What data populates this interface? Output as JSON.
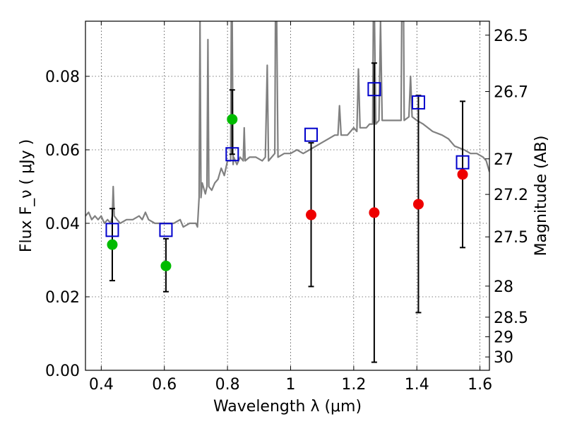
{
  "chart_data": {
    "type": "scatter",
    "xlabel": "Wavelength  λ (μm)",
    "ylabel": "Flux  F_ν  ( μJy )",
    "ylabel_right": "Magnitude (AB)",
    "xlim": [
      0.35,
      1.63
    ],
    "ylim": [
      0.0,
      0.095
    ],
    "grid": true,
    "x_ticks": [
      {
        "value": 0.4,
        "label": "0.4"
      },
      {
        "value": 0.6,
        "label": "0.6"
      },
      {
        "value": 0.8,
        "label": "0.8"
      },
      {
        "value": 1.0,
        "label": "1"
      },
      {
        "value": 1.2,
        "label": "1.2"
      },
      {
        "value": 1.4,
        "label": "1.4"
      },
      {
        "value": 1.6,
        "label": "1.6"
      }
    ],
    "y_ticks": [
      {
        "value": 0.0,
        "label": "0.00"
      },
      {
        "value": 0.02,
        "label": "0.02"
      },
      {
        "value": 0.04,
        "label": "0.04"
      },
      {
        "value": 0.06,
        "label": "0.06"
      },
      {
        "value": 0.08,
        "label": "0.08"
      }
    ],
    "right_ticks": [
      {
        "mag": 26.5,
        "label": "26.5"
      },
      {
        "mag": 26.7,
        "label": "26.7"
      },
      {
        "mag": 27.0,
        "label": "27"
      },
      {
        "mag": 27.2,
        "label": "27.2"
      },
      {
        "mag": 27.5,
        "label": "27.5"
      },
      {
        "mag": 28.0,
        "label": "28"
      },
      {
        "mag": 28.5,
        "label": "28.5"
      },
      {
        "mag": 29.0,
        "label": "29"
      },
      {
        "mag": 30.0,
        "label": "30"
      }
    ],
    "model_spectrum": {
      "color": "#808080",
      "points": [
        [
          0.35,
          0.042
        ],
        [
          0.36,
          0.043
        ],
        [
          0.37,
          0.041
        ],
        [
          0.38,
          0.042
        ],
        [
          0.39,
          0.041
        ],
        [
          0.4,
          0.042
        ],
        [
          0.41,
          0.04
        ],
        [
          0.42,
          0.041
        ],
        [
          0.43,
          0.04
        ],
        [
          0.435,
          0.042
        ],
        [
          0.438,
          0.05
        ],
        [
          0.441,
          0.042
        ],
        [
          0.45,
          0.041
        ],
        [
          0.46,
          0.04
        ],
        [
          0.48,
          0.041
        ],
        [
          0.5,
          0.041
        ],
        [
          0.52,
          0.042
        ],
        [
          0.53,
          0.041
        ],
        [
          0.54,
          0.043
        ],
        [
          0.55,
          0.041
        ],
        [
          0.57,
          0.04
        ],
        [
          0.6,
          0.04
        ],
        [
          0.63,
          0.04
        ],
        [
          0.65,
          0.041
        ],
        [
          0.66,
          0.039
        ],
        [
          0.68,
          0.04
        ],
        [
          0.7,
          0.04
        ],
        [
          0.705,
          0.039
        ],
        [
          0.71,
          0.047
        ],
        [
          0.713,
          0.095
        ],
        [
          0.716,
          0.047
        ],
        [
          0.72,
          0.051
        ],
        [
          0.73,
          0.048
        ],
        [
          0.735,
          0.05
        ],
        [
          0.738,
          0.09
        ],
        [
          0.741,
          0.05
        ],
        [
          0.75,
          0.049
        ],
        [
          0.76,
          0.051
        ],
        [
          0.77,
          0.052
        ],
        [
          0.78,
          0.055
        ],
        [
          0.79,
          0.053
        ],
        [
          0.8,
          0.057
        ],
        [
          0.81,
          0.057
        ],
        [
          0.812,
          0.095
        ],
        [
          0.815,
          0.095
        ],
        [
          0.818,
          0.056
        ],
        [
          0.82,
          0.058
        ],
        [
          0.83,
          0.056
        ],
        [
          0.84,
          0.058
        ],
        [
          0.85,
          0.057
        ],
        [
          0.853,
          0.066
        ],
        [
          0.856,
          0.057
        ],
        [
          0.87,
          0.058
        ],
        [
          0.89,
          0.058
        ],
        [
          0.91,
          0.057
        ],
        [
          0.92,
          0.058
        ],
        [
          0.926,
          0.083
        ],
        [
          0.93,
          0.057
        ],
        [
          0.94,
          0.058
        ],
        [
          0.95,
          0.059
        ],
        [
          0.952,
          0.095
        ],
        [
          0.956,
          0.095
        ],
        [
          0.96,
          0.058
        ],
        [
          0.98,
          0.059
        ],
        [
          1.0,
          0.059
        ],
        [
          1.02,
          0.06
        ],
        [
          1.04,
          0.059
        ],
        [
          1.06,
          0.06
        ],
        [
          1.08,
          0.061
        ],
        [
          1.1,
          0.062
        ],
        [
          1.12,
          0.063
        ],
        [
          1.14,
          0.064
        ],
        [
          1.15,
          0.064
        ],
        [
          1.155,
          0.072
        ],
        [
          1.16,
          0.064
        ],
        [
          1.18,
          0.064
        ],
        [
          1.19,
          0.065
        ],
        [
          1.2,
          0.066
        ],
        [
          1.21,
          0.065
        ],
        [
          1.215,
          0.082
        ],
        [
          1.22,
          0.066
        ],
        [
          1.24,
          0.066
        ],
        [
          1.25,
          0.067
        ],
        [
          1.26,
          0.067
        ],
        [
          1.262,
          0.095
        ],
        [
          1.266,
          0.095
        ],
        [
          1.27,
          0.067
        ],
        [
          1.28,
          0.068
        ],
        [
          1.285,
          0.095
        ],
        [
          1.29,
          0.068
        ],
        [
          1.31,
          0.068
        ],
        [
          1.33,
          0.068
        ],
        [
          1.35,
          0.068
        ],
        [
          1.352,
          0.095
        ],
        [
          1.358,
          0.095
        ],
        [
          1.36,
          0.068
        ],
        [
          1.375,
          0.069
        ],
        [
          1.38,
          0.08
        ],
        [
          1.385,
          0.069
        ],
        [
          1.4,
          0.068
        ],
        [
          1.42,
          0.067
        ],
        [
          1.45,
          0.065
        ],
        [
          1.48,
          0.064
        ],
        [
          1.5,
          0.063
        ],
        [
          1.52,
          0.061
        ],
        [
          1.55,
          0.06
        ],
        [
          1.57,
          0.059
        ],
        [
          1.59,
          0.059
        ],
        [
          1.61,
          0.058
        ],
        [
          1.62,
          0.057
        ],
        [
          1.63,
          0.054
        ]
      ]
    },
    "series": [
      {
        "marker": "open-square",
        "color": "#0000cc",
        "points": [
          {
            "x": 0.435,
            "y": 0.0382
          },
          {
            "x": 0.605,
            "y": 0.0382
          },
          {
            "x": 0.815,
            "y": 0.0588
          },
          {
            "x": 1.065,
            "y": 0.0641
          },
          {
            "x": 1.265,
            "y": 0.0765
          },
          {
            "x": 1.405,
            "y": 0.0729
          },
          {
            "x": 1.545,
            "y": 0.0566
          }
        ]
      },
      {
        "marker": "filled-circle",
        "color": "#00bb00",
        "points": [
          {
            "x": 0.435,
            "y": 0.0342,
            "ylo": 0.0244,
            "yhi": 0.044
          },
          {
            "x": 0.605,
            "y": 0.0284,
            "ylo": 0.0214,
            "yhi": 0.0358
          },
          {
            "x": 0.815,
            "y": 0.0683,
            "ylo": 0.0588,
            "yhi": 0.0763
          }
        ]
      },
      {
        "marker": "filled-circle",
        "color": "#ee0000",
        "points": [
          {
            "x": 1.065,
            "y": 0.0423,
            "ylo": 0.0228,
            "yhi": 0.0619
          },
          {
            "x": 1.265,
            "y": 0.0429,
            "ylo": 0.0022,
            "yhi": 0.0836
          },
          {
            "x": 1.405,
            "y": 0.0452,
            "ylo": 0.0157,
            "yhi": 0.0748
          },
          {
            "x": 1.545,
            "y": 0.0533,
            "ylo": 0.0334,
            "yhi": 0.0732
          }
        ]
      }
    ]
  }
}
